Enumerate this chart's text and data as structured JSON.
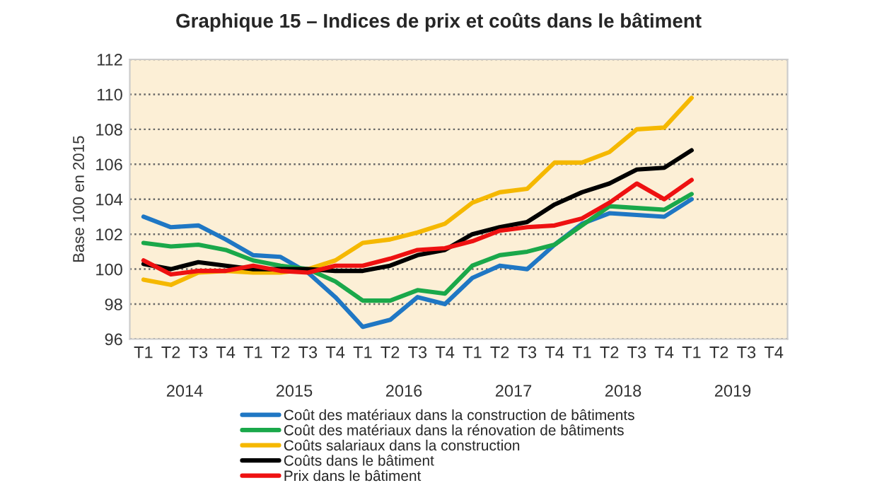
{
  "chart_data": {
    "type": "line",
    "title": "Graphique 15 – Indices de prix et coûts dans le bâtiment",
    "ylabel": "Base 100 en 2015",
    "categories": [
      "T1",
      "T2",
      "T3",
      "T4",
      "T1",
      "T2",
      "T3",
      "T4",
      "T1",
      "T2",
      "T3",
      "T4",
      "T1",
      "T2",
      "T3",
      "T4",
      "T1",
      "T2",
      "T3",
      "T4",
      "T1",
      "T2",
      "T3",
      "T4"
    ],
    "annotations": [
      "2014",
      "2015",
      "2016",
      "2017",
      "2018",
      "2019"
    ],
    "series": [
      {
        "name": "Coût des matériaux dans la construction de bâtiments",
        "color": "#1f77c4",
        "values": [
          103.0,
          102.4,
          102.5,
          101.7,
          100.8,
          100.7,
          99.8,
          98.4,
          96.7,
          97.1,
          98.4,
          98.0,
          99.5,
          100.2,
          100.0,
          101.4,
          102.6,
          103.2,
          103.1,
          103.0,
          104.0,
          null,
          null,
          null
        ]
      },
      {
        "name": "Coût des matériaux dans la rénovation de bâtiments",
        "color": "#1aa84a",
        "values": [
          101.5,
          101.3,
          101.4,
          101.1,
          100.5,
          100.2,
          100.0,
          99.3,
          98.2,
          98.2,
          98.8,
          98.6,
          100.2,
          100.8,
          101.0,
          101.4,
          102.5,
          103.6,
          103.5,
          103.4,
          104.3,
          null,
          null,
          null
        ]
      },
      {
        "name": "Coûts salariaux dans la construction",
        "color": "#f5b800",
        "values": [
          99.4,
          99.1,
          99.8,
          99.9,
          99.8,
          99.8,
          100.0,
          100.5,
          101.5,
          101.7,
          102.1,
          102.6,
          103.8,
          104.4,
          104.6,
          106.1,
          106.1,
          106.7,
          108.0,
          108.1,
          109.8,
          null,
          null,
          null
        ]
      },
      {
        "name": "Coûts dans le bâtiment",
        "color": "#000000",
        "values": [
          100.3,
          100.0,
          100.4,
          100.2,
          100.0,
          100.0,
          100.0,
          99.9,
          99.9,
          100.2,
          100.8,
          101.1,
          102.0,
          102.4,
          102.7,
          103.7,
          104.4,
          104.9,
          105.7,
          105.8,
          106.8,
          null,
          null,
          null
        ]
      },
      {
        "name": "Prix dans le bâtiment",
        "color": "#ee1111",
        "values": [
          100.5,
          99.7,
          99.9,
          99.9,
          100.2,
          99.9,
          99.8,
          100.2,
          100.2,
          100.6,
          101.1,
          101.2,
          101.6,
          102.2,
          102.4,
          102.5,
          102.9,
          103.8,
          104.9,
          104.0,
          105.1,
          null,
          null,
          null
        ]
      }
    ],
    "ylim": [
      96,
      112
    ],
    "yticks": [
      96,
      98,
      100,
      102,
      104,
      106,
      108,
      110,
      112
    ],
    "grid": "y",
    "legend": "bottom",
    "line_style": "solid",
    "marker": "none"
  }
}
